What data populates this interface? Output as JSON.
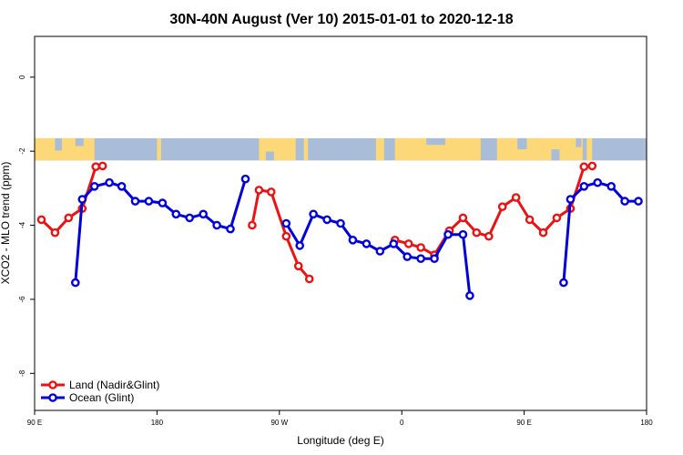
{
  "chart_data": {
    "type": "line",
    "title": "30N-40N August (Ver 10)   2015-01-01 to 2020-12-18",
    "xlabel": "Longitude (deg E)",
    "ylabel": "XCO2 - MLO trend (ppm)",
    "xlim": [
      90,
      540
    ],
    "ylim": [
      -9,
      1.1
    ],
    "x_ticks": [
      {
        "value": 90,
        "label": "90 E"
      },
      {
        "value": 180,
        "label": "180"
      },
      {
        "value": 270,
        "label": "90 W"
      },
      {
        "value": 360,
        "label": "0"
      },
      {
        "value": 450,
        "label": "90 E"
      },
      {
        "value": 540,
        "label": "180"
      }
    ],
    "y_ticks": [
      {
        "value": 0,
        "label": "0"
      },
      {
        "value": -2,
        "label": "-2"
      },
      {
        "value": -4,
        "label": "-4"
      },
      {
        "value": -6,
        "label": "-6"
      },
      {
        "value": -8,
        "label": "-8"
      }
    ],
    "map_band": {
      "y_top": -1.65,
      "y_bottom": -2.25,
      "ocean_color": "#a9bdd9",
      "land_color": "#fdd878"
    },
    "series": [
      {
        "name": "Land (Nadir&Glint)",
        "color": "#ee1111",
        "segments": [
          [
            [
              95,
              -3.85
            ],
            [
              105,
              -4.2
            ],
            [
              115,
              -3.8
            ],
            [
              125,
              -3.55
            ],
            [
              135,
              -2.42
            ],
            [
              140,
              -2.4
            ]
          ],
          [
            [
              250,
              -4
            ],
            [
              255,
              -3.05
            ],
            [
              264,
              -3.1
            ],
            [
              275,
              -4.3
            ],
            [
              284,
              -5.1
            ],
            [
              292,
              -5.45
            ]
          ],
          [
            [
              355,
              -4.4
            ],
            [
              365,
              -4.5
            ],
            [
              374,
              -4.6
            ],
            [
              384,
              -4.8
            ],
            [
              395,
              -4.15
            ],
            [
              405,
              -3.8
            ],
            [
              415,
              -4.2
            ],
            [
              424,
              -4.3
            ],
            [
              434,
              -3.5
            ],
            [
              444,
              -3.25
            ],
            [
              454,
              -3.85
            ],
            [
              464,
              -4.2
            ],
            [
              474,
              -3.8
            ],
            [
              484,
              -3.55
            ],
            [
              494,
              -2.42
            ],
            [
              500,
              -2.4
            ]
          ]
        ]
      },
      {
        "name": "Ocean (Glint)",
        "color": "#0000dd",
        "segments": [
          [
            [
              120,
              -5.55
            ],
            [
              125,
              -3.3
            ],
            [
              134,
              -2.95
            ],
            [
              145,
              -2.85
            ],
            [
              154,
              -2.95
            ],
            [
              164,
              -3.35
            ],
            [
              174,
              -3.35
            ],
            [
              184,
              -3.4
            ],
            [
              194,
              -3.7
            ],
            [
              204,
              -3.8
            ],
            [
              214,
              -3.7
            ],
            [
              224,
              -4
            ],
            [
              234,
              -4.1
            ],
            [
              245,
              -2.75
            ]
          ],
          [
            [
              275,
              -3.95
            ],
            [
              285,
              -4.55
            ],
            [
              295,
              -3.7
            ],
            [
              305,
              -3.85
            ],
            [
              315,
              -3.95
            ],
            [
              324,
              -4.4
            ],
            [
              334,
              -4.5
            ],
            [
              344,
              -4.7
            ],
            [
              354,
              -4.5
            ],
            [
              364,
              -4.85
            ],
            [
              374,
              -4.9
            ],
            [
              384,
              -4.9
            ],
            [
              394,
              -4.25
            ],
            [
              405,
              -4.25
            ],
            [
              410,
              -5.9
            ]
          ],
          [
            [
              479,
              -5.55
            ],
            [
              484,
              -3.3
            ],
            [
              494,
              -2.95
            ],
            [
              504,
              -2.85
            ],
            [
              514,
              -2.95
            ],
            [
              524,
              -3.35
            ],
            [
              534,
              -3.35
            ]
          ]
        ]
      }
    ],
    "legend": {
      "position": "bottom-left",
      "entries": [
        "Land (Nadir&Glint)",
        "Ocean (Glint)"
      ]
    }
  }
}
